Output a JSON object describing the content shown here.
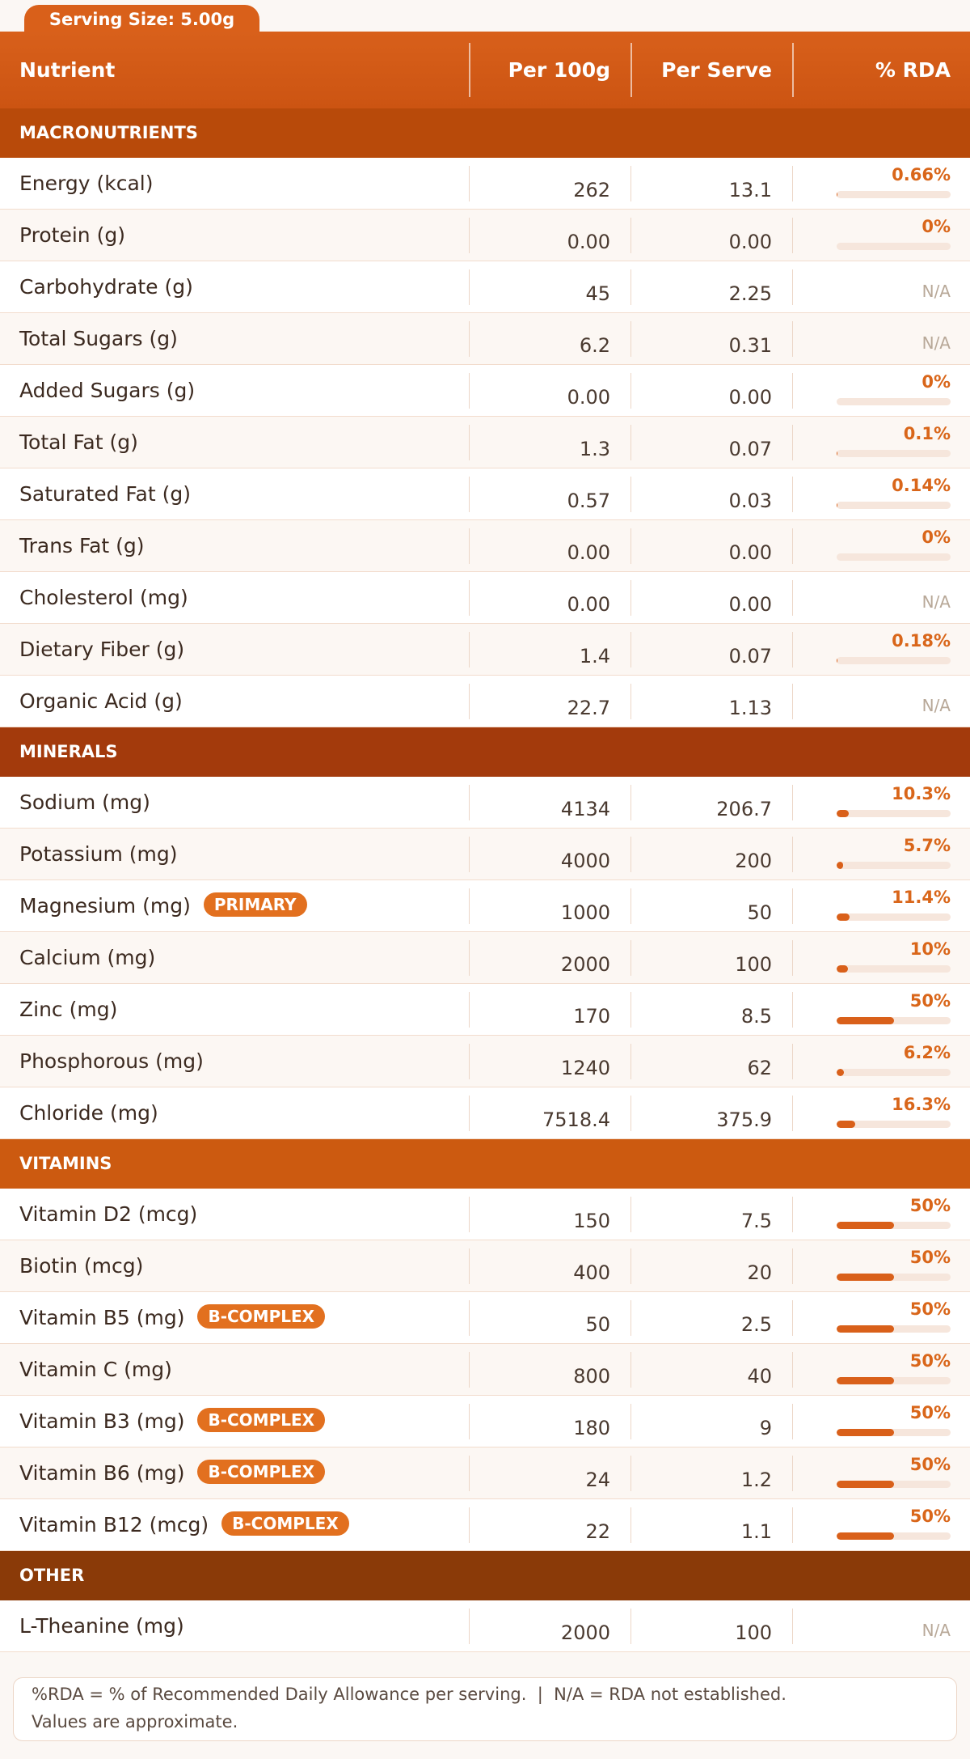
{
  "serving_size": "Serving Size: 5.00g",
  "header": {
    "nutrient": "Nutrient",
    "per_100g": "Per 100g",
    "per_serve": "Per Serve",
    "rda": "% RDA"
  },
  "sections": [
    {
      "title": "MACRONUTRIENTS",
      "rows": [
        {
          "name": "Energy (kcal)",
          "per_100g": "262",
          "per_serve": "13.1",
          "rda": {
            "value": 0.66,
            "label": "0.66%"
          }
        },
        {
          "name": "Protein (g)",
          "per_100g": "0.00",
          "per_serve": "0.00",
          "rda": {
            "value": 0,
            "label": "0%"
          }
        },
        {
          "name": "Carbohydrate (g)",
          "per_100g": "45",
          "per_serve": "2.25",
          "rda": "N/A"
        },
        {
          "name": "Total Sugars (g)",
          "per_100g": "6.2",
          "per_serve": "0.31",
          "rda": "N/A"
        },
        {
          "name": "Added Sugars (g)",
          "per_100g": "0.00",
          "per_serve": "0.00",
          "rda": {
            "value": 0,
            "label": "0%"
          }
        },
        {
          "name": "Total Fat (g)",
          "per_100g": "1.3",
          "per_serve": "0.07",
          "rda": {
            "value": 0.1,
            "label": "0.1%"
          }
        },
        {
          "name": "Saturated Fat (g)",
          "per_100g": "0.57",
          "per_serve": "0.03",
          "rda": {
            "value": 0.14,
            "label": "0.14%"
          }
        },
        {
          "name": "Trans Fat (g)",
          "per_100g": "0.00",
          "per_serve": "0.00",
          "rda": {
            "value": 0,
            "label": "0%"
          }
        },
        {
          "name": "Cholesterol (mg)",
          "per_100g": "0.00",
          "per_serve": "0.00",
          "rda": "N/A"
        },
        {
          "name": "Dietary Fiber (g)",
          "per_100g": "1.4",
          "per_serve": "0.07",
          "rda": {
            "value": 0.18,
            "label": "0.18%"
          }
        },
        {
          "name": "Organic Acid (g)",
          "per_100g": "22.7",
          "per_serve": "1.13",
          "rda": "N/A"
        }
      ]
    },
    {
      "title": "MINERALS",
      "rows": [
        {
          "name": "Sodium (mg)",
          "per_100g": "4134",
          "per_serve": "206.7",
          "rda": {
            "value": 10.3,
            "label": "10.3%"
          }
        },
        {
          "name": "Potassium (mg)",
          "per_100g": "4000",
          "per_serve": "200",
          "rda": {
            "value": 5.7,
            "label": "5.7%"
          }
        },
        {
          "name": "Magnesium (mg)",
          "badge": "PRIMARY",
          "per_100g": "1000",
          "per_serve": "50",
          "rda": {
            "value": 11.4,
            "label": "11.4%"
          }
        },
        {
          "name": "Calcium (mg)",
          "per_100g": "2000",
          "per_serve": "100",
          "rda": {
            "value": 10,
            "label": "10%"
          }
        },
        {
          "name": "Zinc (mg)",
          "per_100g": "170",
          "per_serve": "8.5",
          "rda": {
            "value": 50,
            "label": "50%"
          }
        },
        {
          "name": "Phosphorous (mg)",
          "per_100g": "1240",
          "per_serve": "62",
          "rda": {
            "value": 6.2,
            "label": "6.2%"
          }
        },
        {
          "name": "Chloride (mg)",
          "per_100g": "7518.4",
          "per_serve": "375.9",
          "rda": {
            "value": 16.3,
            "label": "16.3%"
          }
        }
      ]
    },
    {
      "title": "VITAMINS",
      "rows": [
        {
          "name": "Vitamin D2 (mcg)",
          "per_100g": "150",
          "per_serve": "7.5",
          "rda": {
            "value": 50,
            "label": "50%"
          }
        },
        {
          "name": "Biotin (mcg)",
          "per_100g": "400",
          "per_serve": "20",
          "rda": {
            "value": 50,
            "label": "50%"
          }
        },
        {
          "name": "Vitamin B5 (mg)",
          "badge": "B-COMPLEX",
          "per_100g": "50",
          "per_serve": "2.5",
          "rda": {
            "value": 50,
            "label": "50%"
          }
        },
        {
          "name": "Vitamin C (mg)",
          "per_100g": "800",
          "per_serve": "40",
          "rda": {
            "value": 50,
            "label": "50%"
          }
        },
        {
          "name": "Vitamin B3 (mg)",
          "badge": "B-COMPLEX",
          "per_100g": "180",
          "per_serve": "9",
          "rda": {
            "value": 50,
            "label": "50%"
          }
        },
        {
          "name": "Vitamin B6 (mg)",
          "badge": "B-COMPLEX",
          "per_100g": "24",
          "per_serve": "1.2",
          "rda": {
            "value": 50,
            "label": "50%"
          }
        },
        {
          "name": "Vitamin B12 (mcg)",
          "badge": "B-COMPLEX",
          "per_100g": "22",
          "per_serve": "1.1",
          "rda": {
            "value": 50,
            "label": "50%"
          }
        }
      ]
    },
    {
      "title": "OTHER",
      "rows": [
        {
          "name": "L-Theanine (mg)",
          "per_100g": "2000",
          "per_serve": "100",
          "rda": "N/A"
        }
      ]
    }
  ],
  "footnote": [
    "%RDA = % of Recommended Daily Allowance per serving.  |  N/A = RDA not established.",
    "Values are approximate."
  ]
}
